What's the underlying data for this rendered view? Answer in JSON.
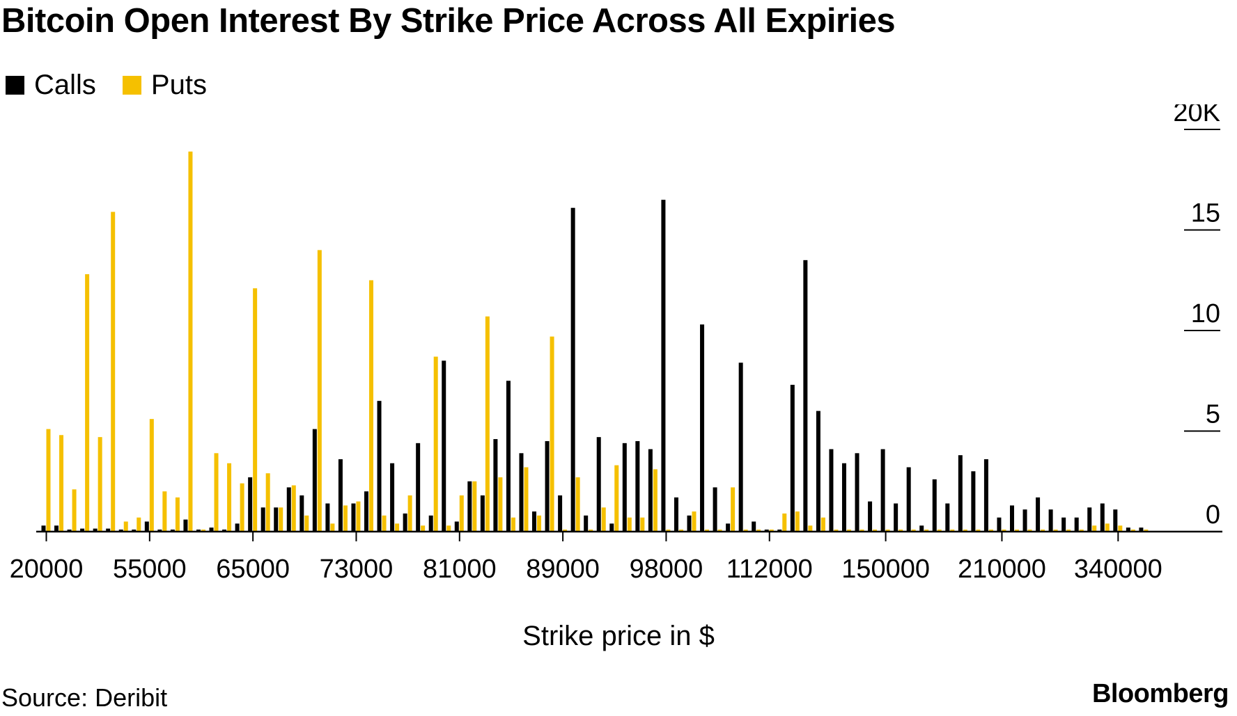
{
  "colors": {
    "calls": "#000000",
    "puts": "#f5c000",
    "axis": "#000000"
  },
  "chart_data": {
    "type": "bar",
    "title": "Bitcoin Open Interest By Strike Price Across All Expiries",
    "xlabel": "Strike price in $",
    "ylabel": "",
    "y_ticks": [
      0,
      5,
      10,
      15,
      20
    ],
    "y_tick_labels": [
      "0",
      "5",
      "10",
      "15",
      "20K"
    ],
    "ylim": [
      0,
      20
    ],
    "x_tick_labels": [
      "20000",
      "55000",
      "65000",
      "73000",
      "81000",
      "89000",
      "98000",
      "112000",
      "150000",
      "210000",
      "340000"
    ],
    "x_tick_category_index": [
      0,
      8,
      16,
      24,
      32,
      40,
      48,
      56,
      65,
      74,
      83
    ],
    "n_categories": 86,
    "legend_position": "top-left",
    "series": [
      {
        "name": "Calls",
        "values": [
          0.3,
          0.3,
          0.1,
          0.15,
          0.15,
          0.15,
          0.1,
          0.1,
          0.5,
          0.1,
          0.1,
          0.6,
          0.1,
          0.2,
          0.1,
          0.4,
          2.7,
          1.2,
          1.2,
          2.2,
          1.8,
          5.1,
          1.4,
          3.6,
          1.4,
          2.0,
          6.5,
          3.4,
          0.9,
          4.4,
          0.8,
          8.5,
          0.5,
          2.5,
          1.8,
          4.6,
          7.5,
          3.9,
          1.0,
          4.5,
          1.8,
          16.1,
          0.8,
          4.7,
          0.4,
          4.4,
          4.5,
          4.1,
          16.5,
          1.7,
          0.8,
          10.3,
          2.2,
          0.4,
          8.4,
          0.5,
          0.1,
          0.1,
          7.3,
          13.5,
          6.0,
          4.1,
          3.4,
          3.9,
          1.5,
          4.1,
          1.4,
          3.2,
          0.3,
          2.6,
          1.4,
          3.8,
          3.0,
          3.6,
          0.7,
          1.3,
          1.1,
          1.7,
          1.1,
          0.7,
          0.7,
          1.2,
          1.4,
          1.1,
          0.2,
          0.2
        ]
      },
      {
        "name": "Puts",
        "values": [
          5.1,
          4.8,
          2.1,
          12.8,
          4.7,
          15.9,
          0.5,
          0.7,
          5.6,
          2.0,
          1.7,
          18.9,
          0.1,
          3.9,
          3.4,
          2.4,
          12.1,
          2.9,
          1.2,
          2.3,
          0.8,
          14.0,
          0.4,
          1.3,
          1.5,
          12.5,
          0.8,
          0.4,
          1.8,
          0.3,
          8.7,
          0.3,
          1.8,
          2.5,
          10.7,
          2.7,
          0.7,
          3.2,
          0.8,
          9.7,
          0.1,
          2.7,
          0.1,
          1.2,
          3.3,
          0.7,
          0.7,
          3.1,
          0.1,
          0.1,
          1.0,
          0.1,
          0.1,
          2.2,
          0.1,
          0.1,
          0.1,
          0.9,
          1.0,
          0.3,
          0.7,
          0.1,
          0.1,
          0.1,
          0.1,
          0.1,
          0.1,
          0.1,
          0.1,
          0.1,
          0.1,
          0.1,
          0.1,
          0.1,
          0.1,
          0.1,
          0.1,
          0.1,
          0.1,
          0.1,
          0.1,
          0.3,
          0.4,
          0.3,
          0.1,
          0.1
        ]
      }
    ]
  },
  "legend": {
    "calls_label": "Calls",
    "puts_label": "Puts"
  },
  "footer": {
    "source": "Source: Deribit",
    "brand": "Bloomberg"
  }
}
